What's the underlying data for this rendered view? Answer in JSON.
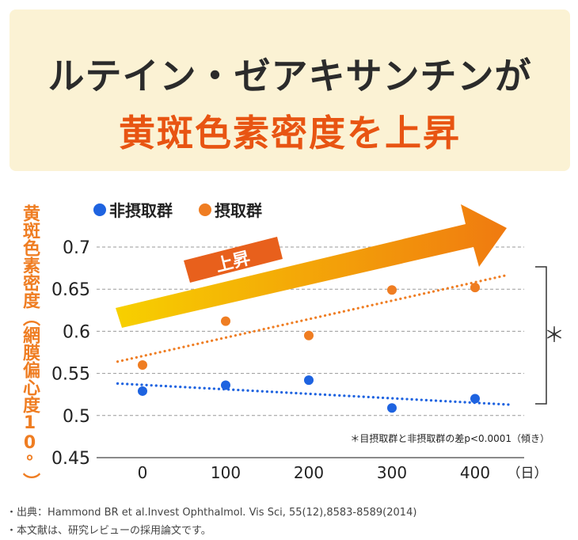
{
  "title": {
    "line1": "ルテイン・ゼアキサンチンが",
    "line2": "黄斑色素密度を上昇"
  },
  "chart_data": {
    "type": "scatter",
    "ylabel": "黄斑色素密度（網膜偏心度10°）",
    "xlabel": "（日）",
    "x_ticks": [
      "0",
      "100",
      "200",
      "300",
      "400"
    ],
    "y_ticks": [
      "0.7",
      "0.65",
      "0.6",
      "0.55",
      "0.5",
      "0.45"
    ],
    "ylim": [
      0.45,
      0.7
    ],
    "grid": "horizontal-dashed",
    "legend_position": "top-left",
    "series": [
      {
        "name": "非摂取群",
        "color": "#1e63e0",
        "x": [
          0,
          100,
          200,
          300,
          400
        ],
        "y": [
          0.529,
          0.536,
          0.542,
          0.509,
          0.52
        ],
        "trend": [
          [
            -30,
            0.538
          ],
          [
            440,
            0.513
          ]
        ]
      },
      {
        "name": "摂取群",
        "color": "#ef7d22",
        "x": [
          0,
          100,
          200,
          300,
          400
        ],
        "y": [
          0.56,
          0.612,
          0.595,
          0.649,
          0.652
        ],
        "trend": [
          [
            -30,
            0.564
          ],
          [
            440,
            0.667
          ]
        ]
      }
    ],
    "annotations": {
      "arrow_label": "上昇",
      "bracket_mark": "＊",
      "footnote": "＊目摂取群と非摂取群の差p<0.0001（傾き）"
    }
  },
  "sources": [
    "・出典：Hammond BR et al.Invest Ophthalmol. Vis Sci, 55(12),8583-8589(2014)",
    "・本文献は、研究レビューの採用論文です。"
  ]
}
